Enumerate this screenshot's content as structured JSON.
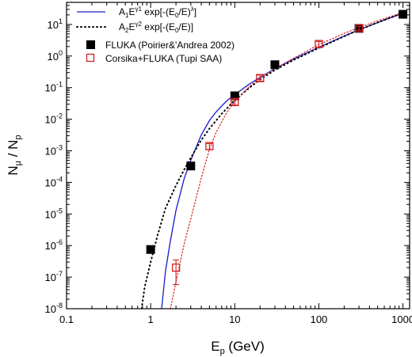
{
  "chart_data": {
    "type": "scatter",
    "xlabel": {
      "main": "E",
      "sub": "p",
      "unit": " (GeV)"
    },
    "ylabel": {
      "num": "N",
      "num_sub": "μ",
      "sep": " / ",
      "den": "N",
      "den_sub": "p"
    },
    "x_scale": "log",
    "y_scale": "log",
    "xlim": [
      0.1,
      1200
    ],
    "ylim": [
      1e-08,
      50
    ],
    "x_ticks": [
      {
        "value": 0.1,
        "label": "0.1"
      },
      {
        "value": 1,
        "label": "1"
      },
      {
        "value": 10,
        "label": "10"
      },
      {
        "value": 100,
        "label": "100"
      },
      {
        "value": 1000,
        "label": "1000"
      }
    ],
    "y_ticks": [
      {
        "value": 1e-08,
        "base": "10",
        "exp": "-8"
      },
      {
        "value": 1e-07,
        "base": "10",
        "exp": "-7"
      },
      {
        "value": 1e-06,
        "base": "10",
        "exp": "-6"
      },
      {
        "value": 1e-05,
        "base": "10",
        "exp": "-5"
      },
      {
        "value": 0.0001,
        "base": "10",
        "exp": "-4"
      },
      {
        "value": 0.001,
        "base": "10",
        "exp": "-3"
      },
      {
        "value": 0.01,
        "base": "10",
        "exp": "-2"
      },
      {
        "value": 0.1,
        "base": "10",
        "exp": "-1"
      },
      {
        "value": 1,
        "base": "10",
        "exp": "0"
      },
      {
        "value": 10,
        "base": "10",
        "exp": "1"
      }
    ],
    "legend": {
      "position": "top-left",
      "entries": [
        {
          "kind": "line-solid",
          "color": "#1a1ac8",
          "parts": [
            "A",
            "1",
            "E",
            "γ1",
            " exp[-(E",
            "0",
            "/E)",
            "λ",
            "]"
          ]
        },
        {
          "kind": "line-dotted",
          "color": "#000000",
          "parts": [
            "A",
            "2",
            "E",
            "γ2",
            " exp[-(E",
            "0",
            "/E)]"
          ]
        },
        {
          "kind": "marker-filled",
          "color": "#000000",
          "text": "FLUKA (Poirier&'Andrea 2002)"
        },
        {
          "kind": "marker-open",
          "color": "#d42020",
          "text": "Corsika+FLUKA (Tupi SAA)"
        }
      ]
    },
    "series": [
      {
        "name": "FLUKA (Poirier&'Andrea 2002)",
        "style": "filled-square",
        "color": "#000000",
        "points": [
          {
            "x": 1,
            "y": 7.5e-07
          },
          {
            "x": 3,
            "y": 0.00033
          },
          {
            "x": 10,
            "y": 0.055
          },
          {
            "x": 30,
            "y": 0.53
          },
          {
            "x": 300,
            "y": 7.5
          },
          {
            "x": 1000,
            "y": 21
          }
        ]
      },
      {
        "name": "Corsika+FLUKA (Tupi SAA)",
        "style": "open-square",
        "color": "#d42020",
        "points": [
          {
            "x": 2,
            "y": 2e-07,
            "ylo": 5.8e-08,
            "yhi": 3.5e-07
          },
          {
            "x": 5,
            "y": 0.0014,
            "ylo": 0.0011,
            "yhi": 0.0017
          },
          {
            "x": 10,
            "y": 0.035,
            "ylo": 0.028,
            "yhi": 0.043
          },
          {
            "x": 20,
            "y": 0.2,
            "ylo": 0.16,
            "yhi": 0.25
          },
          {
            "x": 100,
            "y": 2.4,
            "ylo": 1.9,
            "yhi": 2.9
          },
          {
            "x": 300,
            "y": 7.6,
            "ylo": 6.6,
            "yhi": 8.6
          }
        ]
      },
      {
        "name": "A1 fit",
        "style": "solid-line",
        "color": "#1a1ac8",
        "points": [
          {
            "x": 1.35,
            "y": 1e-08
          },
          {
            "x": 1.5,
            "y": 1.5e-07
          },
          {
            "x": 1.7,
            "y": 1.2e-06
          },
          {
            "x": 2,
            "y": 1.3e-05
          },
          {
            "x": 2.5,
            "y": 0.00013
          },
          {
            "x": 3,
            "y": 0.0005
          },
          {
            "x": 4,
            "y": 0.0032
          },
          {
            "x": 5,
            "y": 0.009
          },
          {
            "x": 6,
            "y": 0.017
          },
          {
            "x": 8,
            "y": 0.038
          },
          {
            "x": 10,
            "y": 0.06
          },
          {
            "x": 15,
            "y": 0.13
          },
          {
            "x": 20,
            "y": 0.21
          },
          {
            "x": 30,
            "y": 0.4
          },
          {
            "x": 50,
            "y": 0.8
          },
          {
            "x": 100,
            "y": 1.9
          },
          {
            "x": 200,
            "y": 4.3
          },
          {
            "x": 300,
            "y": 6.8
          },
          {
            "x": 500,
            "y": 11.5
          },
          {
            "x": 1000,
            "y": 23
          },
          {
            "x": 1100,
            "y": 26
          }
        ]
      },
      {
        "name": "A2 fit",
        "style": "dotted-line",
        "color": "#000000",
        "points": [
          {
            "x": 0.78,
            "y": 1e-08
          },
          {
            "x": 0.85,
            "y": 5e-08
          },
          {
            "x": 1,
            "y": 3e-07
          },
          {
            "x": 1.2,
            "y": 2e-06
          },
          {
            "x": 1.5,
            "y": 1.5e-05
          },
          {
            "x": 2,
            "y": 8e-05
          },
          {
            "x": 2.5,
            "y": 0.00025
          },
          {
            "x": 3,
            "y": 0.0006
          },
          {
            "x": 4,
            "y": 0.0022
          },
          {
            "x": 5,
            "y": 0.005
          },
          {
            "x": 7,
            "y": 0.015
          },
          {
            "x": 10,
            "y": 0.04
          },
          {
            "x": 15,
            "y": 0.1
          },
          {
            "x": 20,
            "y": 0.18
          },
          {
            "x": 30,
            "y": 0.36
          },
          {
            "x": 50,
            "y": 0.75
          },
          {
            "x": 100,
            "y": 1.8
          },
          {
            "x": 200,
            "y": 4.2
          },
          {
            "x": 300,
            "y": 6.8
          },
          {
            "x": 500,
            "y": 11.5
          },
          {
            "x": 1000,
            "y": 23
          },
          {
            "x": 1100,
            "y": 26
          }
        ]
      },
      {
        "name": "Corsika fit",
        "style": "red-dotted-line",
        "color": "#d42020",
        "points": [
          {
            "x": 1.72,
            "y": 1e-08
          },
          {
            "x": 2,
            "y": 7e-08
          },
          {
            "x": 2.5,
            "y": 1.1e-06
          },
          {
            "x": 3,
            "y": 7e-06
          },
          {
            "x": 4,
            "y": 0.00014
          },
          {
            "x": 5,
            "y": 0.0011
          },
          {
            "x": 6,
            "y": 0.0038
          },
          {
            "x": 8,
            "y": 0.016
          },
          {
            "x": 10,
            "y": 0.036
          },
          {
            "x": 15,
            "y": 0.11
          },
          {
            "x": 20,
            "y": 0.2
          },
          {
            "x": 30,
            "y": 0.4
          },
          {
            "x": 50,
            "y": 0.85
          },
          {
            "x": 100,
            "y": 2.3
          },
          {
            "x": 200,
            "y": 5.2
          },
          {
            "x": 300,
            "y": 8
          },
          {
            "x": 500,
            "y": 13
          },
          {
            "x": 1000,
            "y": 24
          },
          {
            "x": 1100,
            "y": 26
          }
        ]
      }
    ]
  }
}
